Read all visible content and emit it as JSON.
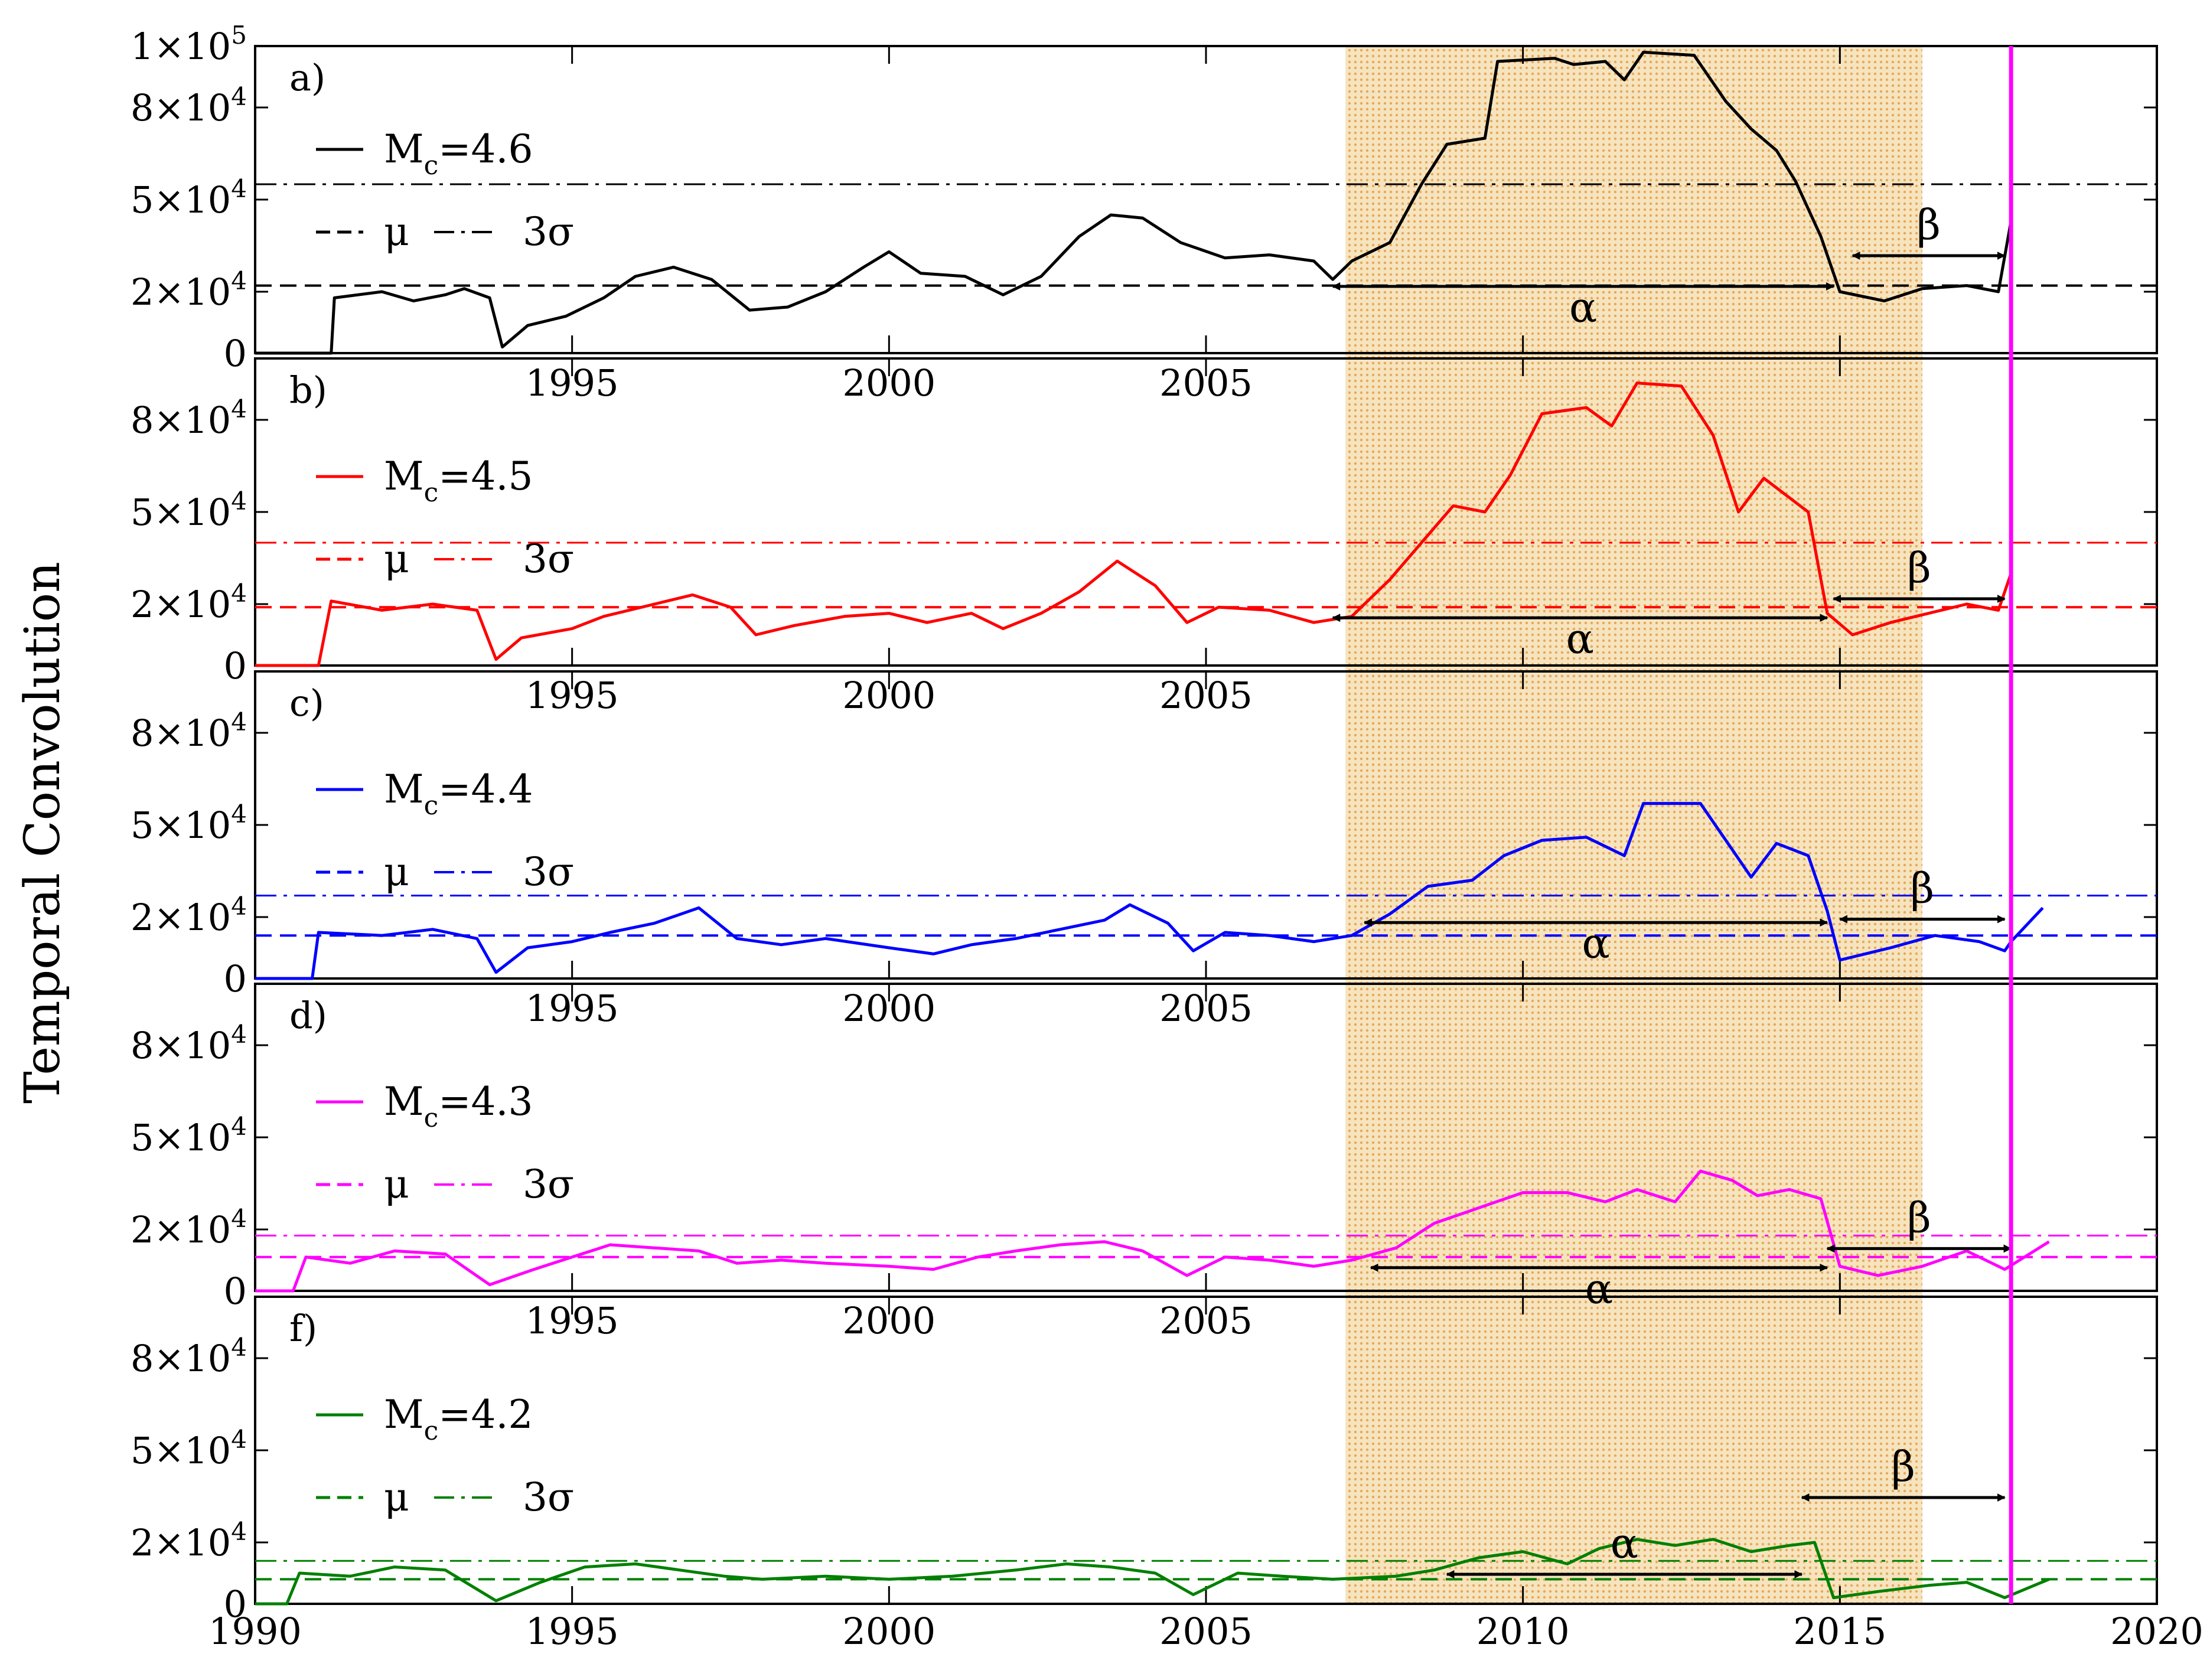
{
  "chart_data": {
    "type": "line",
    "ylabel": "Temporal Convolution",
    "xlim": [
      1990,
      2020
    ],
    "x_ticks": [
      "1990",
      "1995",
      "2000",
      "2005",
      "2010",
      "2015",
      "2020"
    ],
    "inner_x_ticks": [
      "1995",
      "2000",
      "2005"
    ],
    "shaded_region": {
      "x_start": 2007.2,
      "x_end": 2016.3,
      "color": "#f2d9a6"
    },
    "vertical_marker": {
      "x": 2017.7,
      "color": "#ff00ff"
    },
    "panels": [
      {
        "id": "a",
        "label": "a)",
        "color": "#000000",
        "mc_value": "=4.6",
        "ylim": [
          0,
          100000
        ],
        "y_ticks": [
          {
            "v": 0,
            "t": "0"
          },
          {
            "v": 20000,
            "t": "2x10^4"
          },
          {
            "v": 50000,
            "t": "5x10^4"
          },
          {
            "v": 80000,
            "t": "8x10^4"
          },
          {
            "v": 100000,
            "t": "1x10^5"
          }
        ],
        "mean": 22000,
        "three_sigma": 55000,
        "alpha_arrow": [
          2007.0,
          2014.9
        ],
        "beta_arrow": [
          2015.2,
          2017.6
        ],
        "series": [
          [
            1990.0,
            0
          ],
          [
            1991.2,
            0
          ],
          [
            1991.25,
            18000
          ],
          [
            1992.0,
            20000
          ],
          [
            1992.5,
            17000
          ],
          [
            1993.0,
            19000
          ],
          [
            1993.3,
            21000
          ],
          [
            1993.7,
            18000
          ],
          [
            1993.9,
            2000
          ],
          [
            1994.3,
            9000
          ],
          [
            1994.9,
            12000
          ],
          [
            1995.5,
            18000
          ],
          [
            1996.0,
            25000
          ],
          [
            1996.6,
            28000
          ],
          [
            1997.2,
            24000
          ],
          [
            1997.8,
            14000
          ],
          [
            1998.4,
            15000
          ],
          [
            1999.0,
            20000
          ],
          [
            1999.6,
            28000
          ],
          [
            2000.0,
            33000
          ],
          [
            2000.5,
            26000
          ],
          [
            2001.2,
            25000
          ],
          [
            2001.8,
            19000
          ],
          [
            2002.4,
            25000
          ],
          [
            2003.0,
            38000
          ],
          [
            2003.5,
            45000
          ],
          [
            2004.0,
            44000
          ],
          [
            2004.6,
            36000
          ],
          [
            2005.3,
            31000
          ],
          [
            2006.0,
            32000
          ],
          [
            2006.7,
            30000
          ],
          [
            2007.0,
            24000
          ],
          [
            2007.3,
            30000
          ],
          [
            2007.9,
            36000
          ],
          [
            2008.4,
            55000
          ],
          [
            2008.8,
            68000
          ],
          [
            2009.4,
            70000
          ],
          [
            2009.6,
            95000
          ],
          [
            2010.5,
            96000
          ],
          [
            2010.8,
            94000
          ],
          [
            2011.3,
            95000
          ],
          [
            2011.6,
            89000
          ],
          [
            2011.9,
            98000
          ],
          [
            2012.7,
            97000
          ],
          [
            2013.2,
            82000
          ],
          [
            2013.6,
            73000
          ],
          [
            2014.0,
            66000
          ],
          [
            2014.3,
            56000
          ],
          [
            2014.7,
            38000
          ],
          [
            2015.0,
            20000
          ],
          [
            2015.7,
            17000
          ],
          [
            2016.3,
            21000
          ],
          [
            2017.0,
            22000
          ],
          [
            2017.5,
            20000
          ],
          [
            2017.7,
            43000
          ]
        ]
      },
      {
        "id": "b",
        "label": "b)",
        "color": "#ff0000",
        "mc_value": "=4.5",
        "ylim": [
          0,
          100000
        ],
        "y_ticks": [
          {
            "v": 0,
            "t": "0"
          },
          {
            "v": 20000,
            "t": "2x10^4"
          },
          {
            "v": 50000,
            "t": "5x10^4"
          },
          {
            "v": 80000,
            "t": "8x10^4"
          }
        ],
        "mean": 19000,
        "three_sigma": 40000,
        "alpha_arrow": [
          2007.0,
          2014.8
        ],
        "beta_arrow": [
          2014.9,
          2017.6
        ],
        "series": [
          [
            1990.0,
            0
          ],
          [
            1991.0,
            0
          ],
          [
            1991.2,
            21000
          ],
          [
            1992.0,
            18000
          ],
          [
            1992.8,
            20000
          ],
          [
            1993.5,
            18000
          ],
          [
            1993.8,
            2000
          ],
          [
            1994.2,
            9000
          ],
          [
            1995.0,
            12000
          ],
          [
            1995.5,
            16000
          ],
          [
            1996.3,
            20000
          ],
          [
            1996.9,
            23000
          ],
          [
            1997.5,
            19000
          ],
          [
            1997.9,
            10000
          ],
          [
            1998.5,
            13000
          ],
          [
            1999.3,
            16000
          ],
          [
            2000.0,
            17000
          ],
          [
            2000.6,
            14000
          ],
          [
            2001.3,
            17000
          ],
          [
            2001.8,
            12000
          ],
          [
            2002.4,
            17000
          ],
          [
            2003.0,
            24000
          ],
          [
            2003.6,
            34000
          ],
          [
            2004.2,
            26000
          ],
          [
            2004.7,
            14000
          ],
          [
            2005.2,
            19000
          ],
          [
            2006.0,
            18000
          ],
          [
            2006.7,
            14000
          ],
          [
            2007.3,
            16000
          ],
          [
            2007.9,
            28000
          ],
          [
            2008.4,
            40000
          ],
          [
            2008.9,
            52000
          ],
          [
            2009.4,
            50000
          ],
          [
            2009.8,
            62000
          ],
          [
            2010.3,
            82000
          ],
          [
            2011.0,
            84000
          ],
          [
            2011.4,
            78000
          ],
          [
            2011.8,
            92000
          ],
          [
            2012.5,
            91000
          ],
          [
            2013.0,
            75000
          ],
          [
            2013.4,
            50000
          ],
          [
            2013.8,
            61000
          ],
          [
            2014.5,
            50000
          ],
          [
            2014.8,
            17000
          ],
          [
            2015.2,
            10000
          ],
          [
            2015.8,
            14000
          ],
          [
            2016.4,
            17000
          ],
          [
            2017.0,
            20000
          ],
          [
            2017.5,
            18000
          ],
          [
            2017.7,
            30000
          ]
        ]
      },
      {
        "id": "c",
        "label": "c)",
        "color": "#0000ff",
        "mc_value": "=4.4",
        "ylim": [
          0,
          100000
        ],
        "y_ticks": [
          {
            "v": 0,
            "t": "0"
          },
          {
            "v": 20000,
            "t": "2x10^4"
          },
          {
            "v": 50000,
            "t": "5x10^4"
          },
          {
            "v": 80000,
            "t": "8x10^4"
          }
        ],
        "mean": 14000,
        "three_sigma": 27000,
        "alpha_arrow": [
          2007.5,
          2014.8
        ],
        "beta_arrow": [
          2015.0,
          2017.6
        ],
        "series": [
          [
            1990.0,
            0
          ],
          [
            1990.9,
            0
          ],
          [
            1991.0,
            15000
          ],
          [
            1992.0,
            14000
          ],
          [
            1992.8,
            16000
          ],
          [
            1993.5,
            13000
          ],
          [
            1993.8,
            2000
          ],
          [
            1994.3,
            10000
          ],
          [
            1995.0,
            12000
          ],
          [
            1995.6,
            15000
          ],
          [
            1996.3,
            18000
          ],
          [
            1997.0,
            23000
          ],
          [
            1997.6,
            13000
          ],
          [
            1998.3,
            11000
          ],
          [
            1999.0,
            13000
          ],
          [
            2000.0,
            10000
          ],
          [
            2000.7,
            8000
          ],
          [
            2001.3,
            11000
          ],
          [
            2002.0,
            13000
          ],
          [
            2002.7,
            16000
          ],
          [
            2003.4,
            19000
          ],
          [
            2003.8,
            24000
          ],
          [
            2004.4,
            18000
          ],
          [
            2004.8,
            9000
          ],
          [
            2005.3,
            15000
          ],
          [
            2006.0,
            14000
          ],
          [
            2006.7,
            12000
          ],
          [
            2007.3,
            14000
          ],
          [
            2007.9,
            21000
          ],
          [
            2008.5,
            30000
          ],
          [
            2009.2,
            32000
          ],
          [
            2009.7,
            40000
          ],
          [
            2010.3,
            45000
          ],
          [
            2011.0,
            46000
          ],
          [
            2011.6,
            40000
          ],
          [
            2011.9,
            57000
          ],
          [
            2012.8,
            57000
          ],
          [
            2013.3,
            42000
          ],
          [
            2013.6,
            33000
          ],
          [
            2014.0,
            44000
          ],
          [
            2014.5,
            40000
          ],
          [
            2014.8,
            22000
          ],
          [
            2015.0,
            6000
          ],
          [
            2015.8,
            10000
          ],
          [
            2016.5,
            14000
          ],
          [
            2017.2,
            12000
          ],
          [
            2017.6,
            9000
          ],
          [
            2017.7,
            12000
          ],
          [
            2018.2,
            23000
          ]
        ]
      },
      {
        "id": "d",
        "label": "d)",
        "color": "#ff00ff",
        "mc_value": "=4.3",
        "ylim": [
          0,
          100000
        ],
        "y_ticks": [
          {
            "v": 0,
            "t": "0"
          },
          {
            "v": 20000,
            "t": "2x10^4"
          },
          {
            "v": 50000,
            "t": "5x10^4"
          },
          {
            "v": 80000,
            "t": "8x10^4"
          }
        ],
        "mean": 11000,
        "three_sigma": 18000,
        "alpha_arrow": [
          2007.6,
          2014.8
        ],
        "beta_arrow": [
          2014.8,
          2017.7
        ],
        "series": [
          [
            1990.0,
            0
          ],
          [
            1990.6,
            0
          ],
          [
            1990.8,
            11000
          ],
          [
            1991.5,
            9000
          ],
          [
            1992.2,
            13000
          ],
          [
            1993.0,
            12000
          ],
          [
            1993.7,
            2000
          ],
          [
            1994.4,
            7000
          ],
          [
            1995.0,
            11000
          ],
          [
            1995.6,
            15000
          ],
          [
            1996.3,
            14000
          ],
          [
            1997.0,
            13000
          ],
          [
            1997.6,
            9000
          ],
          [
            1998.3,
            10000
          ],
          [
            1999.0,
            9000
          ],
          [
            2000.0,
            8000
          ],
          [
            2000.7,
            7000
          ],
          [
            2001.4,
            11000
          ],
          [
            2002.0,
            13000
          ],
          [
            2002.7,
            15000
          ],
          [
            2003.4,
            16000
          ],
          [
            2004.0,
            13000
          ],
          [
            2004.7,
            5000
          ],
          [
            2005.3,
            11000
          ],
          [
            2006.0,
            10000
          ],
          [
            2006.7,
            8000
          ],
          [
            2007.3,
            10000
          ],
          [
            2008.0,
            14000
          ],
          [
            2008.6,
            22000
          ],
          [
            2009.3,
            27000
          ],
          [
            2010.0,
            32000
          ],
          [
            2010.7,
            32000
          ],
          [
            2011.3,
            29000
          ],
          [
            2011.8,
            33000
          ],
          [
            2012.4,
            29000
          ],
          [
            2012.8,
            39000
          ],
          [
            2013.3,
            36000
          ],
          [
            2013.7,
            31000
          ],
          [
            2014.2,
            33000
          ],
          [
            2014.7,
            30000
          ],
          [
            2015.0,
            8000
          ],
          [
            2015.6,
            5000
          ],
          [
            2016.3,
            8000
          ],
          [
            2017.0,
            13000
          ],
          [
            2017.6,
            7000
          ],
          [
            2018.3,
            16000
          ]
        ]
      },
      {
        "id": "f",
        "label": "f)",
        "color": "#008000",
        "mc_value": "=4.2",
        "ylim": [
          0,
          100000
        ],
        "y_ticks": [
          {
            "v": 0,
            "t": "0"
          },
          {
            "v": 20000,
            "t": "2x10^4"
          },
          {
            "v": 50000,
            "t": "5x10^4"
          },
          {
            "v": 80000,
            "t": "8x10^4"
          }
        ],
        "mean": 8000,
        "three_sigma": 14000,
        "alpha_arrow": [
          2008.8,
          2014.4
        ],
        "beta_arrow": [
          2014.4,
          2017.6
        ],
        "series": [
          [
            1990.0,
            0
          ],
          [
            1990.5,
            0
          ],
          [
            1990.7,
            10000
          ],
          [
            1991.5,
            9000
          ],
          [
            1992.2,
            12000
          ],
          [
            1993.0,
            11000
          ],
          [
            1993.8,
            1000
          ],
          [
            1994.5,
            7000
          ],
          [
            1995.2,
            12000
          ],
          [
            1996.0,
            13000
          ],
          [
            1996.7,
            11000
          ],
          [
            1997.4,
            9000
          ],
          [
            1998.0,
            8000
          ],
          [
            1999.0,
            9000
          ],
          [
            2000.0,
            8000
          ],
          [
            2001.0,
            9000
          ],
          [
            2002.0,
            11000
          ],
          [
            2002.8,
            13000
          ],
          [
            2003.5,
            12000
          ],
          [
            2004.2,
            10000
          ],
          [
            2004.8,
            3000
          ],
          [
            2005.5,
            10000
          ],
          [
            2006.2,
            9000
          ],
          [
            2007.0,
            8000
          ],
          [
            2008.0,
            9000
          ],
          [
            2008.6,
            11000
          ],
          [
            2009.3,
            15000
          ],
          [
            2010.0,
            17000
          ],
          [
            2010.7,
            13000
          ],
          [
            2011.2,
            18000
          ],
          [
            2011.8,
            21000
          ],
          [
            2012.4,
            19000
          ],
          [
            2013.0,
            21000
          ],
          [
            2013.6,
            17000
          ],
          [
            2014.2,
            19000
          ],
          [
            2014.6,
            20000
          ],
          [
            2014.9,
            2000
          ],
          [
            2015.6,
            4000
          ],
          [
            2016.4,
            6000
          ],
          [
            2017.0,
            7000
          ],
          [
            2017.6,
            2000
          ],
          [
            2018.3,
            8000
          ]
        ]
      }
    ]
  }
}
